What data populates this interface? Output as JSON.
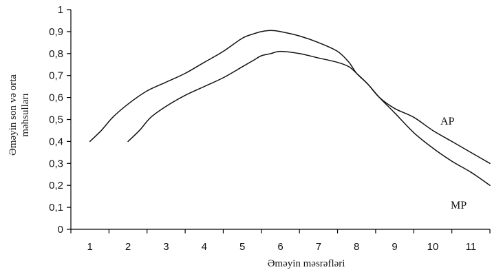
{
  "chart_data": {
    "type": "line",
    "title": "",
    "xlabel": "Əməyin məsrəfləri",
    "ylabel_line1": "Əməyin  son və orta",
    "ylabel_line2": "məhsulları",
    "xlim": [
      0.5,
      11.5
    ],
    "ylim": [
      0,
      1
    ],
    "x_ticks": [
      "1",
      "2",
      "3",
      "4",
      "5",
      "6",
      "7",
      "8",
      "9",
      "10",
      "11"
    ],
    "y_ticks": [
      "0",
      "0,1",
      "0,2",
      "0,3",
      "0,4",
      "0,5",
      "0,6",
      "0,7",
      "0,8",
      "0,9",
      "1"
    ],
    "grid": false,
    "series": [
      {
        "name": "AP",
        "points": [
          [
            1.0,
            0.4
          ],
          [
            1.3,
            0.45
          ],
          [
            1.6,
            0.51
          ],
          [
            2.0,
            0.57
          ],
          [
            2.5,
            0.63
          ],
          [
            3.0,
            0.67
          ],
          [
            3.5,
            0.71
          ],
          [
            4.0,
            0.76
          ],
          [
            4.5,
            0.81
          ],
          [
            5.0,
            0.87
          ],
          [
            5.3,
            0.89
          ],
          [
            5.5,
            0.9
          ],
          [
            5.75,
            0.905
          ],
          [
            6.0,
            0.9
          ],
          [
            6.5,
            0.88
          ],
          [
            7.0,
            0.85
          ],
          [
            7.5,
            0.81
          ],
          [
            7.8,
            0.76
          ],
          [
            8.0,
            0.71
          ],
          [
            8.3,
            0.66
          ],
          [
            8.6,
            0.6
          ],
          [
            9.0,
            0.55
          ],
          [
            9.5,
            0.51
          ],
          [
            10.0,
            0.45
          ],
          [
            10.5,
            0.4
          ],
          [
            11.0,
            0.35
          ],
          [
            11.5,
            0.3
          ]
        ]
      },
      {
        "name": "MP",
        "points": [
          [
            2.0,
            0.4
          ],
          [
            2.3,
            0.45
          ],
          [
            2.6,
            0.51
          ],
          [
            3.0,
            0.56
          ],
          [
            3.5,
            0.61
          ],
          [
            4.0,
            0.65
          ],
          [
            4.5,
            0.69
          ],
          [
            5.0,
            0.74
          ],
          [
            5.3,
            0.77
          ],
          [
            5.5,
            0.79
          ],
          [
            5.75,
            0.8
          ],
          [
            6.0,
            0.81
          ],
          [
            6.5,
            0.8
          ],
          [
            7.0,
            0.78
          ],
          [
            7.5,
            0.76
          ],
          [
            7.8,
            0.74
          ],
          [
            8.0,
            0.71
          ],
          [
            8.3,
            0.66
          ],
          [
            8.6,
            0.6
          ],
          [
            9.0,
            0.53
          ],
          [
            9.5,
            0.44
          ],
          [
            10.0,
            0.37
          ],
          [
            10.5,
            0.31
          ],
          [
            11.0,
            0.26
          ],
          [
            11.5,
            0.2
          ]
        ]
      }
    ]
  }
}
